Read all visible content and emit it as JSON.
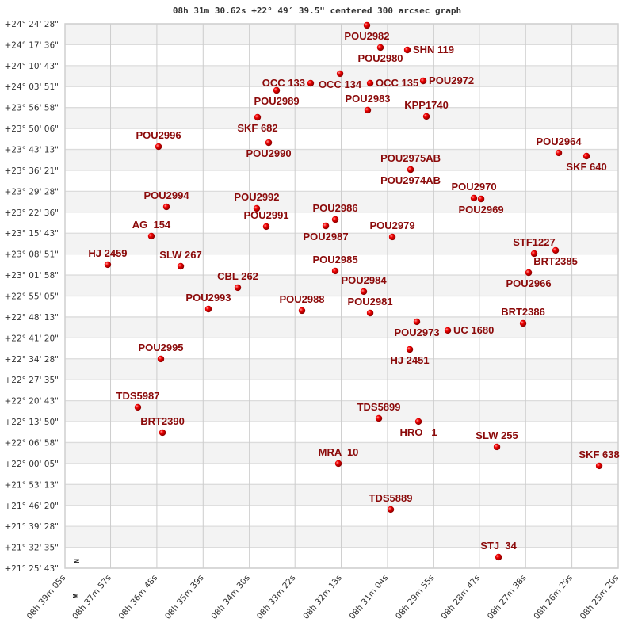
{
  "chart_data": {
    "type": "scatter",
    "title": "08h 31m 30.62s +22° 49′ 39.5\" centered 300 arcsec graph",
    "xlim": [
      "08h 39m 05s",
      "08h 25m 20s"
    ],
    "ylim": [
      "+21° 25' 43\"",
      "+24° 24' 28\""
    ],
    "grid": true,
    "x_ticks": [
      "08h 39m 05s",
      "08h 37m 57s",
      "08h 36m 48s",
      "08h 35m 39s",
      "08h 34m 30s",
      "08h 33m 22s",
      "08h 32m 13s",
      "08h 31m 04s",
      "08h 29m 55s",
      "08h 28m 47s",
      "08h 27m 38s",
      "08h 26m 29s",
      "08h 25m 20s"
    ],
    "y_ticks": [
      "+24° 24' 28\"",
      "+24° 17' 36\"",
      "+24° 10' 43\"",
      "+24° 03' 51\"",
      "+23° 56' 58\"",
      "+23° 50' 06\"",
      "+23° 43' 13\"",
      "+23° 36' 21\"",
      "+23° 29' 28\"",
      "+23° 22' 36\"",
      "+23° 15' 43\"",
      "+23° 08' 51\"",
      "+23° 01' 58\"",
      "+22° 55' 05\"",
      "+22° 48' 13\"",
      "+22° 41' 20\"",
      "+22° 34' 28\"",
      "+22° 27' 35\"",
      "+22° 20' 43\"",
      "+22° 13' 50\"",
      "+22° 06' 58\"",
      "+22° 00' 05\"",
      "+21° 53' 13\"",
      "+21° 46' 20\"",
      "+21° 39' 28\"",
      "+21° 32' 35\"",
      "+21° 25' 43\""
    ],
    "north_label": "N",
    "west_label": "W",
    "colors": {
      "point": "#e00000",
      "label": "#8b0a0a",
      "band": "#f3f3f3",
      "grid": "#cccccc"
    },
    "points": [
      {
        "name": "POU2982",
        "ra": "08h 31m 34.7s",
        "dec": "+24° 23' 57\""
      },
      {
        "name": "POU2980",
        "ra": "08h 31m 14.6s",
        "dec": "+24° 16' 40\""
      },
      {
        "name": "SHN 119",
        "ra": "08h 30m 34.4s",
        "dec": "+24° 15' 53\""
      },
      {
        "name": "OCC 134",
        "ra": "08h 32m 14.8s",
        "dec": "+24° 08' 05\""
      },
      {
        "name": "OCC 133",
        "ra": "08h 32m 58.6s",
        "dec": "+24° 04' 57\""
      },
      {
        "name": "OCC 135",
        "ra": "08h 31m 29.9s",
        "dec": "+24° 04' 57\""
      },
      {
        "name": "POU2972",
        "ra": "08h 30m 10.7s",
        "dec": "+24° 05' 44\""
      },
      {
        "name": "POU2989",
        "ra": "08h 33m 49.4s",
        "dec": "+24° 02' 37\""
      },
      {
        "name": "SKF 682",
        "ra": "08h 34m 17.8s",
        "dec": "+23° 53' 46\""
      },
      {
        "name": "POU2983",
        "ra": "08h 31m 33.5s",
        "dec": "+23° 56' 07\""
      },
      {
        "name": "KPP1740",
        "ra": "08h 30m 06.0s",
        "dec": "+23° 54' 02\""
      },
      {
        "name": "POU2990",
        "ra": "08h 34m 01.2s",
        "dec": "+23° 45' 26\""
      },
      {
        "name": "POU2996",
        "ra": "08h 36m 45.5s",
        "dec": "+23° 44' 08\""
      },
      {
        "name": "POU2964",
        "ra": "08h 26m 48.6s",
        "dec": "+23° 42' 04\""
      },
      {
        "name": "SKF 640",
        "ra": "08h 26m 07.2s",
        "dec": "+23° 41' 01\""
      },
      {
        "name": "POU2975AB",
        "ra": "08h 30m 29.6s",
        "dec": "+23° 36' 36\""
      },
      {
        "name": "POU2974AB",
        "ra": "08h 30m 29.6s",
        "dec": "+23° 36' 36\""
      },
      {
        "name": "POU2994",
        "ra": "08h 36m 33.7s",
        "dec": "+23° 24' 22\""
      },
      {
        "name": "POU2992",
        "ra": "08h 34m 19.0s",
        "dec": "+23° 23' 51\""
      },
      {
        "name": "POU2991",
        "ra": "08h 34m 04.8s",
        "dec": "+23° 17' 52\""
      },
      {
        "name": "POU2986",
        "ra": "08h 32m 21.9s",
        "dec": "+23° 20' 12\""
      },
      {
        "name": "POU2987",
        "ra": "08h 32m 36.1s",
        "dec": "+23° 18' 07\""
      },
      {
        "name": "POU2979",
        "ra": "08h 30m 56.8s",
        "dec": "+23° 14' 29\""
      },
      {
        "name": "POU2970",
        "ra": "08h 28m 55.1s",
        "dec": "+23° 27' 14\""
      },
      {
        "name": "POU2969",
        "ra": "08h 28m 44.4s",
        "dec": "+23° 26' 58\""
      },
      {
        "name": "AG  154",
        "ra": "08h 36m 56.2s",
        "dec": "+23° 14' 45\""
      },
      {
        "name": "HJ 2459",
        "ra": "08h 38m 01.2s",
        "dec": "+23° 05' 23\""
      },
      {
        "name": "SLW 267",
        "ra": "08h 36m 12.4s",
        "dec": "+23° 04' 51\""
      },
      {
        "name": "STF1227",
        "ra": "08h 27m 25.3s",
        "dec": "+23° 09' 01\""
      },
      {
        "name": "BRT2385",
        "ra": "08h 26m 53.3s",
        "dec": "+23° 10' 04\""
      },
      {
        "name": "POU2966",
        "ra": "08h 27m 33.5s",
        "dec": "+23° 02' 46\""
      },
      {
        "name": "POU2985",
        "ra": "08h 32m 21.9s",
        "dec": "+23° 03' 18\""
      },
      {
        "name": "CBL 262",
        "ra": "08h 34m 47.3s",
        "dec": "+22° 57' 50\""
      },
      {
        "name": "POU2984",
        "ra": "08h 31m 39.4s",
        "dec": "+22° 56' 32\""
      },
      {
        "name": "POU2993",
        "ra": "08h 35m 31.1s",
        "dec": "+22° 50' 48\""
      },
      {
        "name": "POU2988",
        "ra": "08h 33m 11.6s",
        "dec": "+22° 50' 17\""
      },
      {
        "name": "POU2981",
        "ra": "08h 31m 29.9s",
        "dec": "+22° 49' 30\""
      },
      {
        "name": "POU2973",
        "ra": "08h 30m 20.2s",
        "dec": "+22° 46' 39\""
      },
      {
        "name": "UC 1680",
        "ra": "08h 29m 34.1s",
        "dec": "+22° 43' 47\""
      },
      {
        "name": "BRT2386",
        "ra": "08h 27m 41.8s",
        "dec": "+22° 46' 07\""
      },
      {
        "name": "HJ 2451",
        "ra": "08h 30m 30.8s",
        "dec": "+22° 37' 32\""
      },
      {
        "name": "POU2995",
        "ra": "08h 36m 42.0s",
        "dec": "+22° 34' 25\""
      },
      {
        "name": "TDS5987",
        "ra": "08h 37m 16.3s",
        "dec": "+22° 18' 33\""
      },
      {
        "name": "BRT2390",
        "ra": "08h 36m 39.6s",
        "dec": "+22° 10' 13\""
      },
      {
        "name": "TDS5899",
        "ra": "08h 31m 16.9s",
        "dec": "+22° 14' 54\""
      },
      {
        "name": "HRO   1",
        "ra": "08h 30m 17.8s",
        "dec": "+22° 13' 52\""
      },
      {
        "name": "SLW 255",
        "ra": "08h 28m 20.8s",
        "dec": "+22° 05' 32\""
      },
      {
        "name": "MRA  10",
        "ra": "08h 32m 17.2s",
        "dec": "+22° 00' 04\""
      },
      {
        "name": "SKF 638",
        "ra": "08h 25m 48.3s",
        "dec": "+21° 59' 18\""
      },
      {
        "name": "TDS5889",
        "ra": "08h 30m 59.2s",
        "dec": "+21° 44' 59\""
      },
      {
        "name": "STJ  34",
        "ra": "08h 28m 18.4s",
        "dec": "+21° 29' 22\""
      }
    ]
  }
}
